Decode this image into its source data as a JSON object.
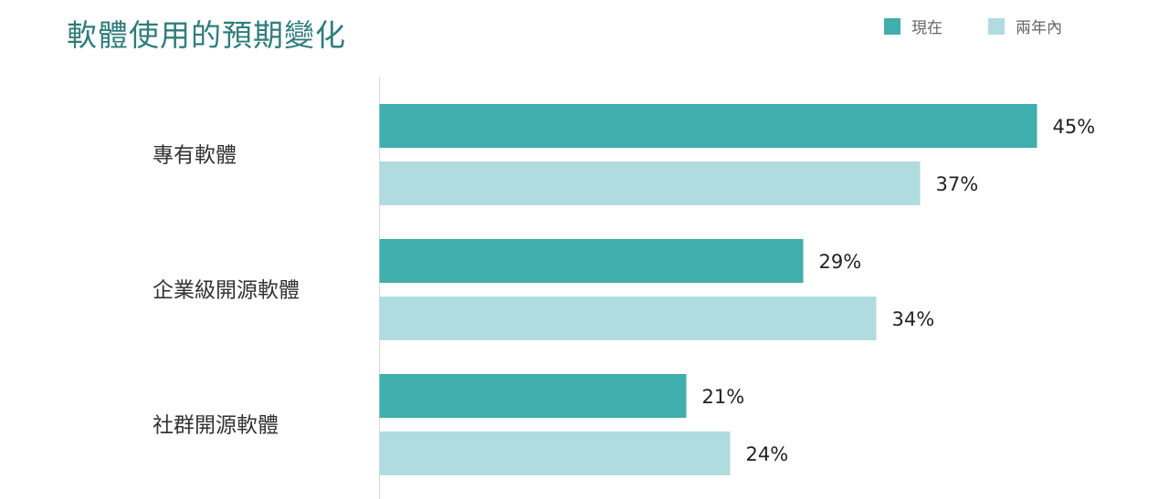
{
  "colors": {
    "current": "#40aeac",
    "future": "#b1dcdf",
    "title": "#2f7d7b",
    "axis": "#d9d9d9"
  },
  "chart_data": {
    "type": "bar",
    "orientation": "horizontal",
    "title": "軟體使用的預期變化",
    "categories": [
      "專有軟體",
      "企業級開源軟體",
      "社群開源軟體"
    ],
    "series": [
      {
        "name": "現在",
        "values": [
          45,
          29,
          21
        ]
      },
      {
        "name": "兩年內",
        "values": [
          37,
          34,
          24
        ]
      }
    ],
    "value_suffix": "%",
    "xlim": [
      0,
      50
    ],
    "grid": false,
    "legend_position": "top-right"
  }
}
